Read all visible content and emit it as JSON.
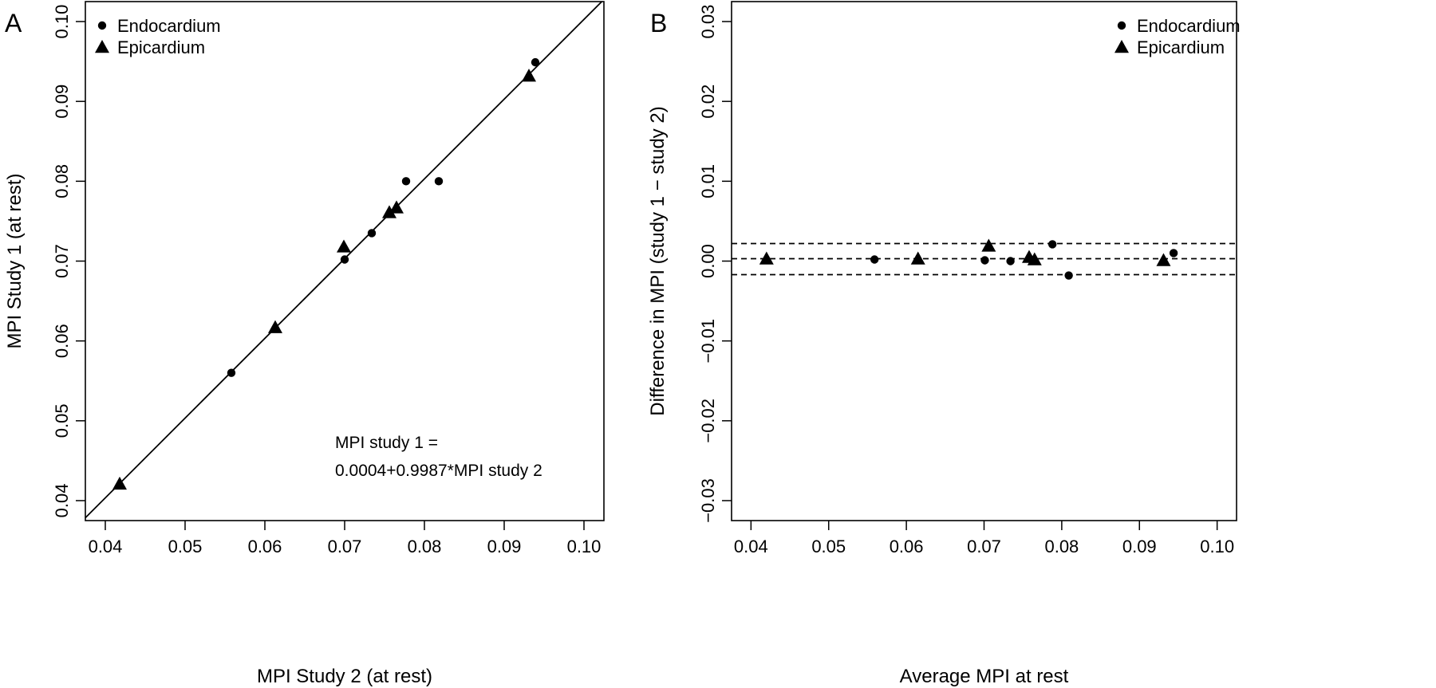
{
  "chart_data": [
    {
      "panel": "A",
      "type": "scatter",
      "title": "",
      "xlabel": "MPI Study 2 (at rest)",
      "ylabel": "MPI Study 1 (at rest)",
      "xlim": [
        0.0375,
        0.1025
      ],
      "ylim": [
        0.0375,
        0.1025
      ],
      "xticks": [
        0.04,
        0.05,
        0.06,
        0.07,
        0.08,
        0.09,
        0.1
      ],
      "xtick_labels": [
        "0.04",
        "0.05",
        "0.06",
        "0.07",
        "0.08",
        "0.09",
        "0.10"
      ],
      "yticks": [
        0.04,
        0.05,
        0.06,
        0.07,
        0.08,
        0.09,
        0.1
      ],
      "ytick_labels": [
        "0.04",
        "0.05",
        "0.06",
        "0.07",
        "0.08",
        "0.09",
        "0.10"
      ],
      "legend_position": "top-left",
      "grid": false,
      "series": [
        {
          "name": "Endocardium",
          "marker": "circle",
          "points": [
            [
              0.0558,
              0.056
            ],
            [
              0.07,
              0.0702
            ],
            [
              0.0734,
              0.0735
            ],
            [
              0.0777,
              0.08
            ],
            [
              0.0818,
              0.08
            ],
            [
              0.0939,
              0.0949
            ]
          ]
        },
        {
          "name": "Epicardium",
          "marker": "triangle",
          "points": [
            [
              0.0418,
              0.0421
            ],
            [
              0.0613,
              0.0617
            ],
            [
              0.0699,
              0.0718
            ],
            [
              0.0756,
              0.0761
            ],
            [
              0.0765,
              0.0767
            ],
            [
              0.0931,
              0.0932
            ]
          ]
        }
      ],
      "fit_line": {
        "intercept": 0.0004,
        "slope": 0.9987
      },
      "annotation": [
        "MPI study 1 =",
        "0.0004+0.9987*MPI study 2"
      ]
    },
    {
      "panel": "B",
      "type": "scatter",
      "title": "",
      "xlabel": "Average MPI at rest",
      "ylabel": "Difference in MPI (study 1 − study 2)",
      "xlim": [
        0.0375,
        0.1025
      ],
      "ylim": [
        -0.0325,
        0.0325
      ],
      "xticks": [
        0.04,
        0.05,
        0.06,
        0.07,
        0.08,
        0.09,
        0.1
      ],
      "xtick_labels": [
        "0.04",
        "0.05",
        "0.06",
        "0.07",
        "0.08",
        "0.09",
        "0.10"
      ],
      "yticks": [
        -0.03,
        -0.02,
        -0.01,
        0.0,
        0.01,
        0.02,
        0.03
      ],
      "ytick_labels": [
        "−0.03",
        "−0.02",
        "−0.01",
        "0.00",
        "0.01",
        "0.02",
        "0.03"
      ],
      "legend_position": "top-right",
      "grid": false,
      "series": [
        {
          "name": "Endocardium",
          "marker": "circle",
          "points": [
            [
              0.0559,
              0.0002
            ],
            [
              0.0701,
              0.0001
            ],
            [
              0.0734,
              0.0
            ],
            [
              0.0788,
              0.0021
            ],
            [
              0.0809,
              -0.0018
            ],
            [
              0.0944,
              0.001
            ]
          ]
        },
        {
          "name": "Epicardium",
          "marker": "triangle",
          "points": [
            [
              0.042,
              0.0003
            ],
            [
              0.0615,
              0.0003
            ],
            [
              0.0706,
              0.0019
            ],
            [
              0.0758,
              0.0005
            ],
            [
              0.0765,
              0.0002
            ],
            [
              0.0931,
              0.0001
            ]
          ]
        }
      ],
      "reference_lines": [
        0.0022,
        0.0003,
        -0.0017
      ]
    }
  ]
}
